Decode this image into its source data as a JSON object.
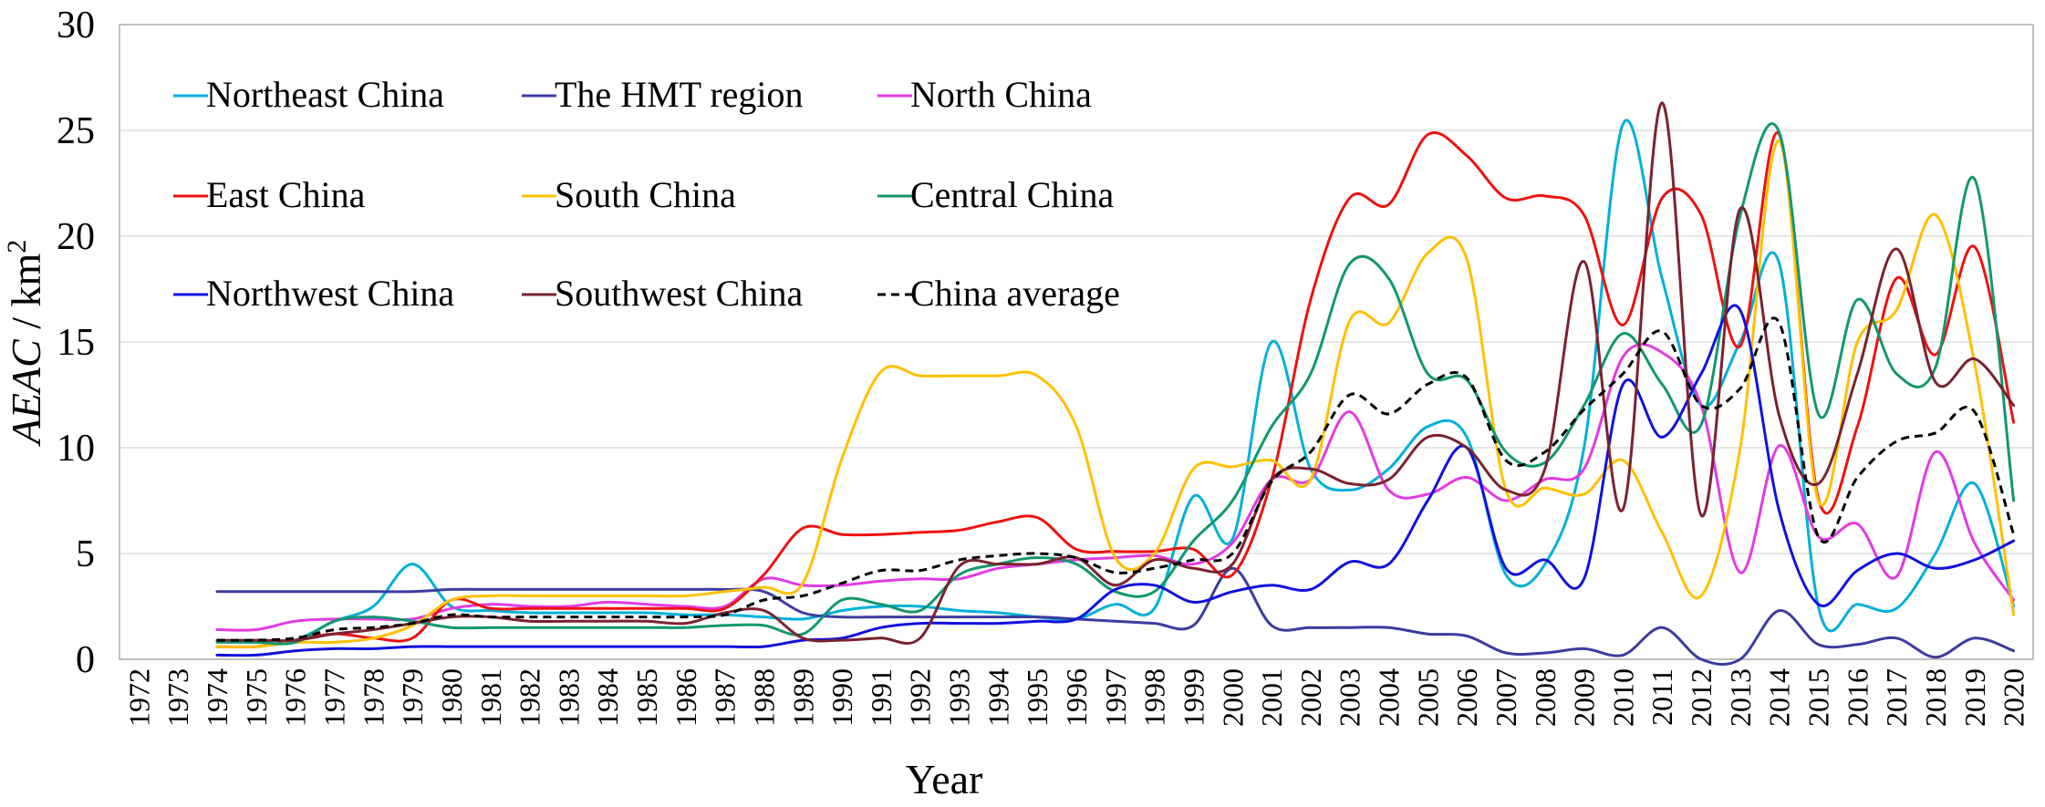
{
  "chart_data": {
    "type": "line",
    "title": "",
    "xlabel": "Year",
    "ylabel_var": "AEAC",
    "ylabel_unit": "km",
    "ylabel_sup": "2",
    "ylim": [
      0,
      30
    ],
    "yticks": [
      "0",
      "5",
      "10",
      "15",
      "20",
      "25",
      "30"
    ],
    "grid": "horizontal",
    "legend_position": "top-left",
    "categories": [
      "1972",
      "1973",
      "1974",
      "1975",
      "1976",
      "1977",
      "1978",
      "1979",
      "1980",
      "1981",
      "1982",
      "1983",
      "1984",
      "1985",
      "1986",
      "1987",
      "1988",
      "1989",
      "1990",
      "1991",
      "1992",
      "1993",
      "1994",
      "1995",
      "1996",
      "1997",
      "1998",
      "1999",
      "2000",
      "2001",
      "2002",
      "2003",
      "2004",
      "2005",
      "2006",
      "2007",
      "2008",
      "2009",
      "2010",
      "2011",
      "2012",
      "2013",
      "2014",
      "2015",
      "2016",
      "2017",
      "2018",
      "2019",
      "2020"
    ],
    "series": [
      {
        "name": "Northeast China",
        "color": "#00b0d8",
        "dash": "solid",
        "values": [
          null,
          null,
          0.6,
          0.6,
          0.9,
          1.8,
          2.5,
          4.5,
          2.5,
          2.3,
          2.2,
          2.2,
          2.2,
          2.2,
          2.1,
          2.1,
          2.0,
          1.9,
          2.3,
          2.5,
          2.5,
          2.3,
          2.2,
          2.0,
          1.9,
          2.6,
          2.4,
          7.7,
          5.7,
          15.0,
          9.0,
          8.0,
          9.0,
          11.0,
          10.5,
          4.0,
          4.5,
          10.0,
          25.3,
          18.0,
          12.0,
          15.0,
          18.7,
          2.5,
          2.6,
          2.4,
          5.0,
          8.3,
          2.5
        ]
      },
      {
        "name": "The HMT region",
        "color": "#3c3ca0",
        "dash": "solid",
        "values": [
          null,
          null,
          3.2,
          3.2,
          3.2,
          3.2,
          3.2,
          3.2,
          3.3,
          3.3,
          3.3,
          3.3,
          3.3,
          3.3,
          3.3,
          3.3,
          3.2,
          2.2,
          2.0,
          2.0,
          2.0,
          2.0,
          2.0,
          2.0,
          1.9,
          1.8,
          1.7,
          1.6,
          4.3,
          1.6,
          1.5,
          1.5,
          1.5,
          1.2,
          1.1,
          0.3,
          0.3,
          0.5,
          0.2,
          1.5,
          0.0,
          0.0,
          2.3,
          0.7,
          0.7,
          1.0,
          0.1,
          1.0,
          0.4
        ]
      },
      {
        "name": "North China",
        "color": "#e23be2",
        "dash": "solid",
        "values": [
          null,
          null,
          1.4,
          1.4,
          1.8,
          1.9,
          1.9,
          1.9,
          2.4,
          2.6,
          2.5,
          2.5,
          2.7,
          2.6,
          2.5,
          2.5,
          3.8,
          3.5,
          3.5,
          3.7,
          3.8,
          3.8,
          4.3,
          4.5,
          4.7,
          4.8,
          4.9,
          4.5,
          5.5,
          8.5,
          8.5,
          11.7,
          8.0,
          7.8,
          8.6,
          7.5,
          8.5,
          9.0,
          14.3,
          14.5,
          12.0,
          4.1,
          10.1,
          5.8,
          6.4,
          3.9,
          9.8,
          5.5,
          2.8
        ]
      },
      {
        "name": "East China",
        "color": "#ee1111",
        "dash": "solid",
        "values": [
          null,
          null,
          0.6,
          0.6,
          0.9,
          1.2,
          1.0,
          1.0,
          2.8,
          2.4,
          2.4,
          2.4,
          2.4,
          2.4,
          2.4,
          2.4,
          4.0,
          6.2,
          5.9,
          5.9,
          6.0,
          6.1,
          6.5,
          6.7,
          5.2,
          5.1,
          5.1,
          5.2,
          4.0,
          8.5,
          17.0,
          21.8,
          21.5,
          24.8,
          23.8,
          21.8,
          21.9,
          21.0,
          15.8,
          21.8,
          21.0,
          14.8,
          24.8,
          7.6,
          11.0,
          18.0,
          14.4,
          19.5,
          11.2
        ]
      },
      {
        "name": "South China",
        "color": "#ffc000",
        "dash": "solid",
        "values": [
          null,
          null,
          0.6,
          0.6,
          0.8,
          0.8,
          1.0,
          1.6,
          2.8,
          3.0,
          3.0,
          3.0,
          3.0,
          3.0,
          3.0,
          3.2,
          3.4,
          3.6,
          9.5,
          13.6,
          13.4,
          13.4,
          13.4,
          13.4,
          11.0,
          4.8,
          5.0,
          9.0,
          9.1,
          9.4,
          8.5,
          16.0,
          15.9,
          19.2,
          18.9,
          8.0,
          8.1,
          7.8,
          9.4,
          6.0,
          3.0,
          10.0,
          24.5,
          7.5,
          15.0,
          16.5,
          21.0,
          14.0,
          2.1
        ]
      },
      {
        "name": "Central China",
        "color": "#139770",
        "dash": "solid",
        "values": [
          null,
          null,
          0.8,
          0.8,
          0.8,
          1.8,
          2.0,
          1.8,
          1.5,
          1.5,
          1.5,
          1.5,
          1.5,
          1.5,
          1.5,
          1.6,
          1.6,
          1.2,
          2.8,
          2.6,
          2.3,
          4.0,
          4.5,
          4.8,
          4.5,
          3.2,
          3.2,
          5.6,
          7.5,
          11.0,
          13.5,
          18.7,
          18.0,
          13.5,
          13.2,
          9.8,
          9.3,
          12.0,
          15.4,
          13.0,
          11.1,
          21.0,
          24.9,
          11.6,
          17.0,
          13.5,
          13.8,
          22.7,
          7.5
        ]
      },
      {
        "name": "Northwest China",
        "color": "#1111dd",
        "dash": "solid",
        "values": [
          null,
          null,
          0.2,
          0.2,
          0.4,
          0.5,
          0.5,
          0.6,
          0.6,
          0.6,
          0.6,
          0.6,
          0.6,
          0.6,
          0.6,
          0.6,
          0.6,
          0.9,
          1.0,
          1.5,
          1.7,
          1.7,
          1.7,
          1.8,
          1.9,
          3.3,
          3.5,
          2.7,
          3.2,
          3.5,
          3.3,
          4.6,
          4.5,
          7.5,
          10.0,
          4.3,
          4.7,
          3.8,
          13.0,
          10.5,
          13.5,
          16.5,
          7.0,
          2.6,
          4.2,
          5.0,
          4.3,
          4.7,
          5.6
        ]
      },
      {
        "name": "Southwest China",
        "color": "#7a2230",
        "dash": "solid",
        "values": [
          null,
          null,
          0.9,
          0.9,
          0.9,
          1.2,
          1.4,
          1.7,
          2.0,
          2.0,
          1.8,
          1.8,
          1.8,
          1.8,
          1.7,
          2.2,
          2.3,
          1.0,
          0.9,
          1.0,
          1.0,
          4.4,
          4.5,
          4.5,
          4.8,
          3.5,
          4.7,
          4.3,
          4.5,
          8.5,
          9.0,
          8.3,
          8.5,
          10.5,
          10.0,
          8.0,
          9.0,
          18.8,
          7.1,
          26.3,
          6.8,
          21.3,
          11.5,
          8.3,
          13.5,
          19.4,
          13.1,
          14.2,
          12.0
        ]
      },
      {
        "name": "China average",
        "color": "#000000",
        "dash": "dashed",
        "values": [
          null,
          null,
          0.9,
          0.9,
          1.0,
          1.4,
          1.5,
          1.7,
          2.1,
          2.0,
          2.0,
          2.0,
          2.0,
          2.0,
          2.0,
          2.1,
          2.8,
          3.0,
          3.6,
          4.2,
          4.2,
          4.7,
          4.9,
          5.0,
          4.8,
          4.1,
          4.3,
          4.7,
          5.0,
          8.4,
          9.8,
          12.5,
          11.6,
          13.0,
          13.3,
          9.4,
          9.8,
          11.8,
          13.5,
          15.5,
          12.0,
          12.8,
          15.9,
          5.8,
          8.6,
          10.3,
          10.7,
          11.7,
          5.9
        ]
      }
    ]
  }
}
